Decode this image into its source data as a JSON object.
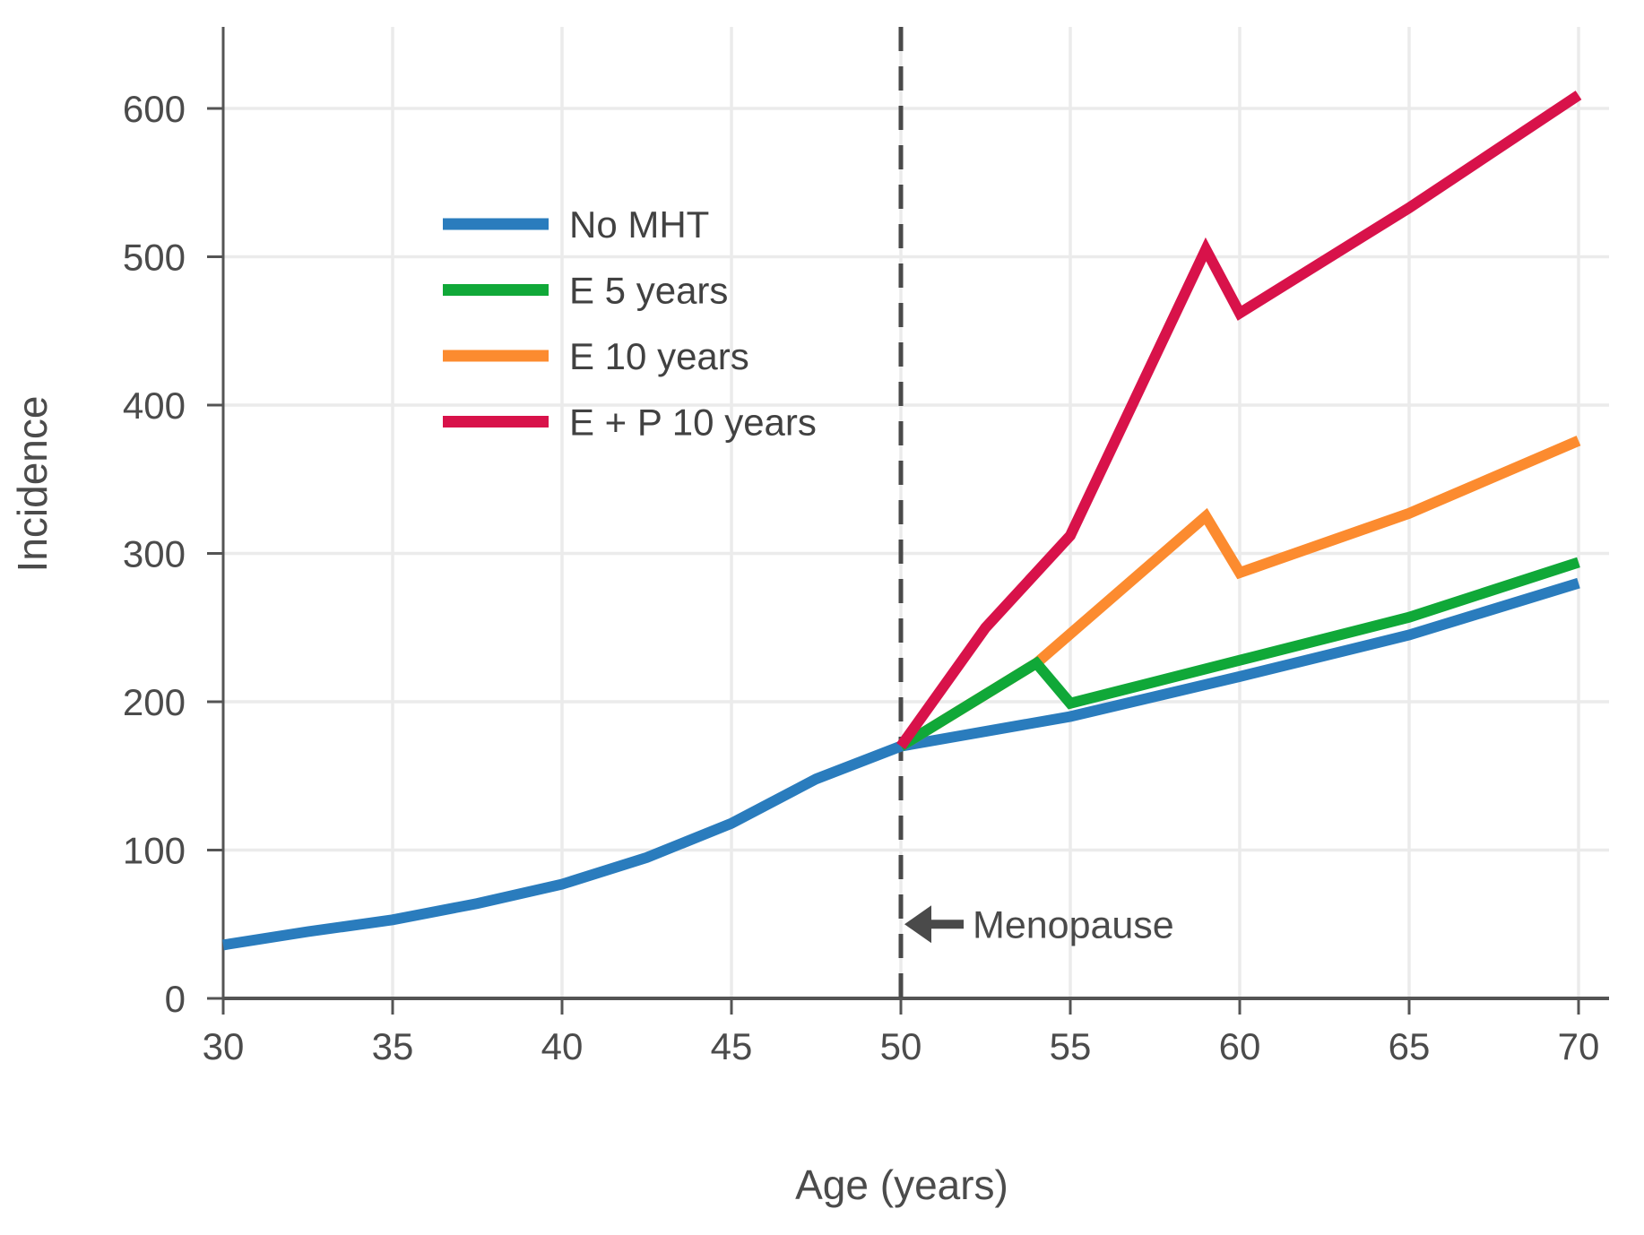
{
  "figure": {
    "background": "#ffffff"
  },
  "chart_data": {
    "type": "line",
    "title": "",
    "xlabel": "Age (years)",
    "ylabel": "Incidence",
    "x_ticks": [
      30,
      35,
      40,
      45,
      50,
      55,
      60,
      65,
      70
    ],
    "y_ticks": [
      0,
      100,
      200,
      300,
      400,
      500,
      600
    ],
    "xlim": [
      30,
      70.9
    ],
    "ylim": [
      0,
      655
    ],
    "grid": true,
    "legend_position": "upper-left-inside",
    "series": [
      {
        "name": "No MHT",
        "color": "#2A7CBD",
        "points": [
          [
            30,
            36
          ],
          [
            32.5,
            45
          ],
          [
            35,
            53
          ],
          [
            37.5,
            64
          ],
          [
            40,
            77
          ],
          [
            42.5,
            95
          ],
          [
            45,
            118
          ],
          [
            47.5,
            148
          ],
          [
            50,
            170
          ],
          [
            55,
            190
          ],
          [
            60,
            217
          ],
          [
            65,
            245
          ],
          [
            70,
            280
          ]
        ]
      },
      {
        "name": "E 10 years",
        "color": "#FC8B2F",
        "points": [
          [
            50,
            170
          ],
          [
            54,
            226
          ],
          [
            59,
            325
          ],
          [
            60,
            287
          ],
          [
            65,
            327
          ],
          [
            70,
            376
          ]
        ]
      },
      {
        "name": "E 5 years",
        "color": "#10A838",
        "points": [
          [
            50,
            170
          ],
          [
            54,
            226
          ],
          [
            55,
            199
          ],
          [
            60,
            228
          ],
          [
            65,
            257
          ],
          [
            70,
            294
          ]
        ]
      },
      {
        "name": "E + P 10 years",
        "color": "#D8124A",
        "points": [
          [
            50,
            170
          ],
          [
            52.5,
            250
          ],
          [
            55,
            312
          ],
          [
            59,
            505
          ],
          [
            60,
            462
          ],
          [
            65,
            533
          ],
          [
            70,
            609
          ]
        ]
      }
    ],
    "legend_items": [
      {
        "label": "No MHT",
        "color": "#2A7CBD"
      },
      {
        "label": "E 5 years",
        "color": "#10A838"
      },
      {
        "label": "E 10 years",
        "color": "#FC8B2F"
      },
      {
        "label": "E + P 10 years",
        "color": "#D8124A"
      }
    ],
    "reference_line": {
      "x": 50,
      "style": "dashed",
      "color": "#4A4A4A"
    },
    "annotation": {
      "text": "Menopause",
      "arrow": "left",
      "at_x": 50,
      "at_y": 50
    }
  },
  "style_colors": {
    "grid": "#EBEBEB",
    "axis": "#545454",
    "tick_text": "#4B4B4B"
  }
}
